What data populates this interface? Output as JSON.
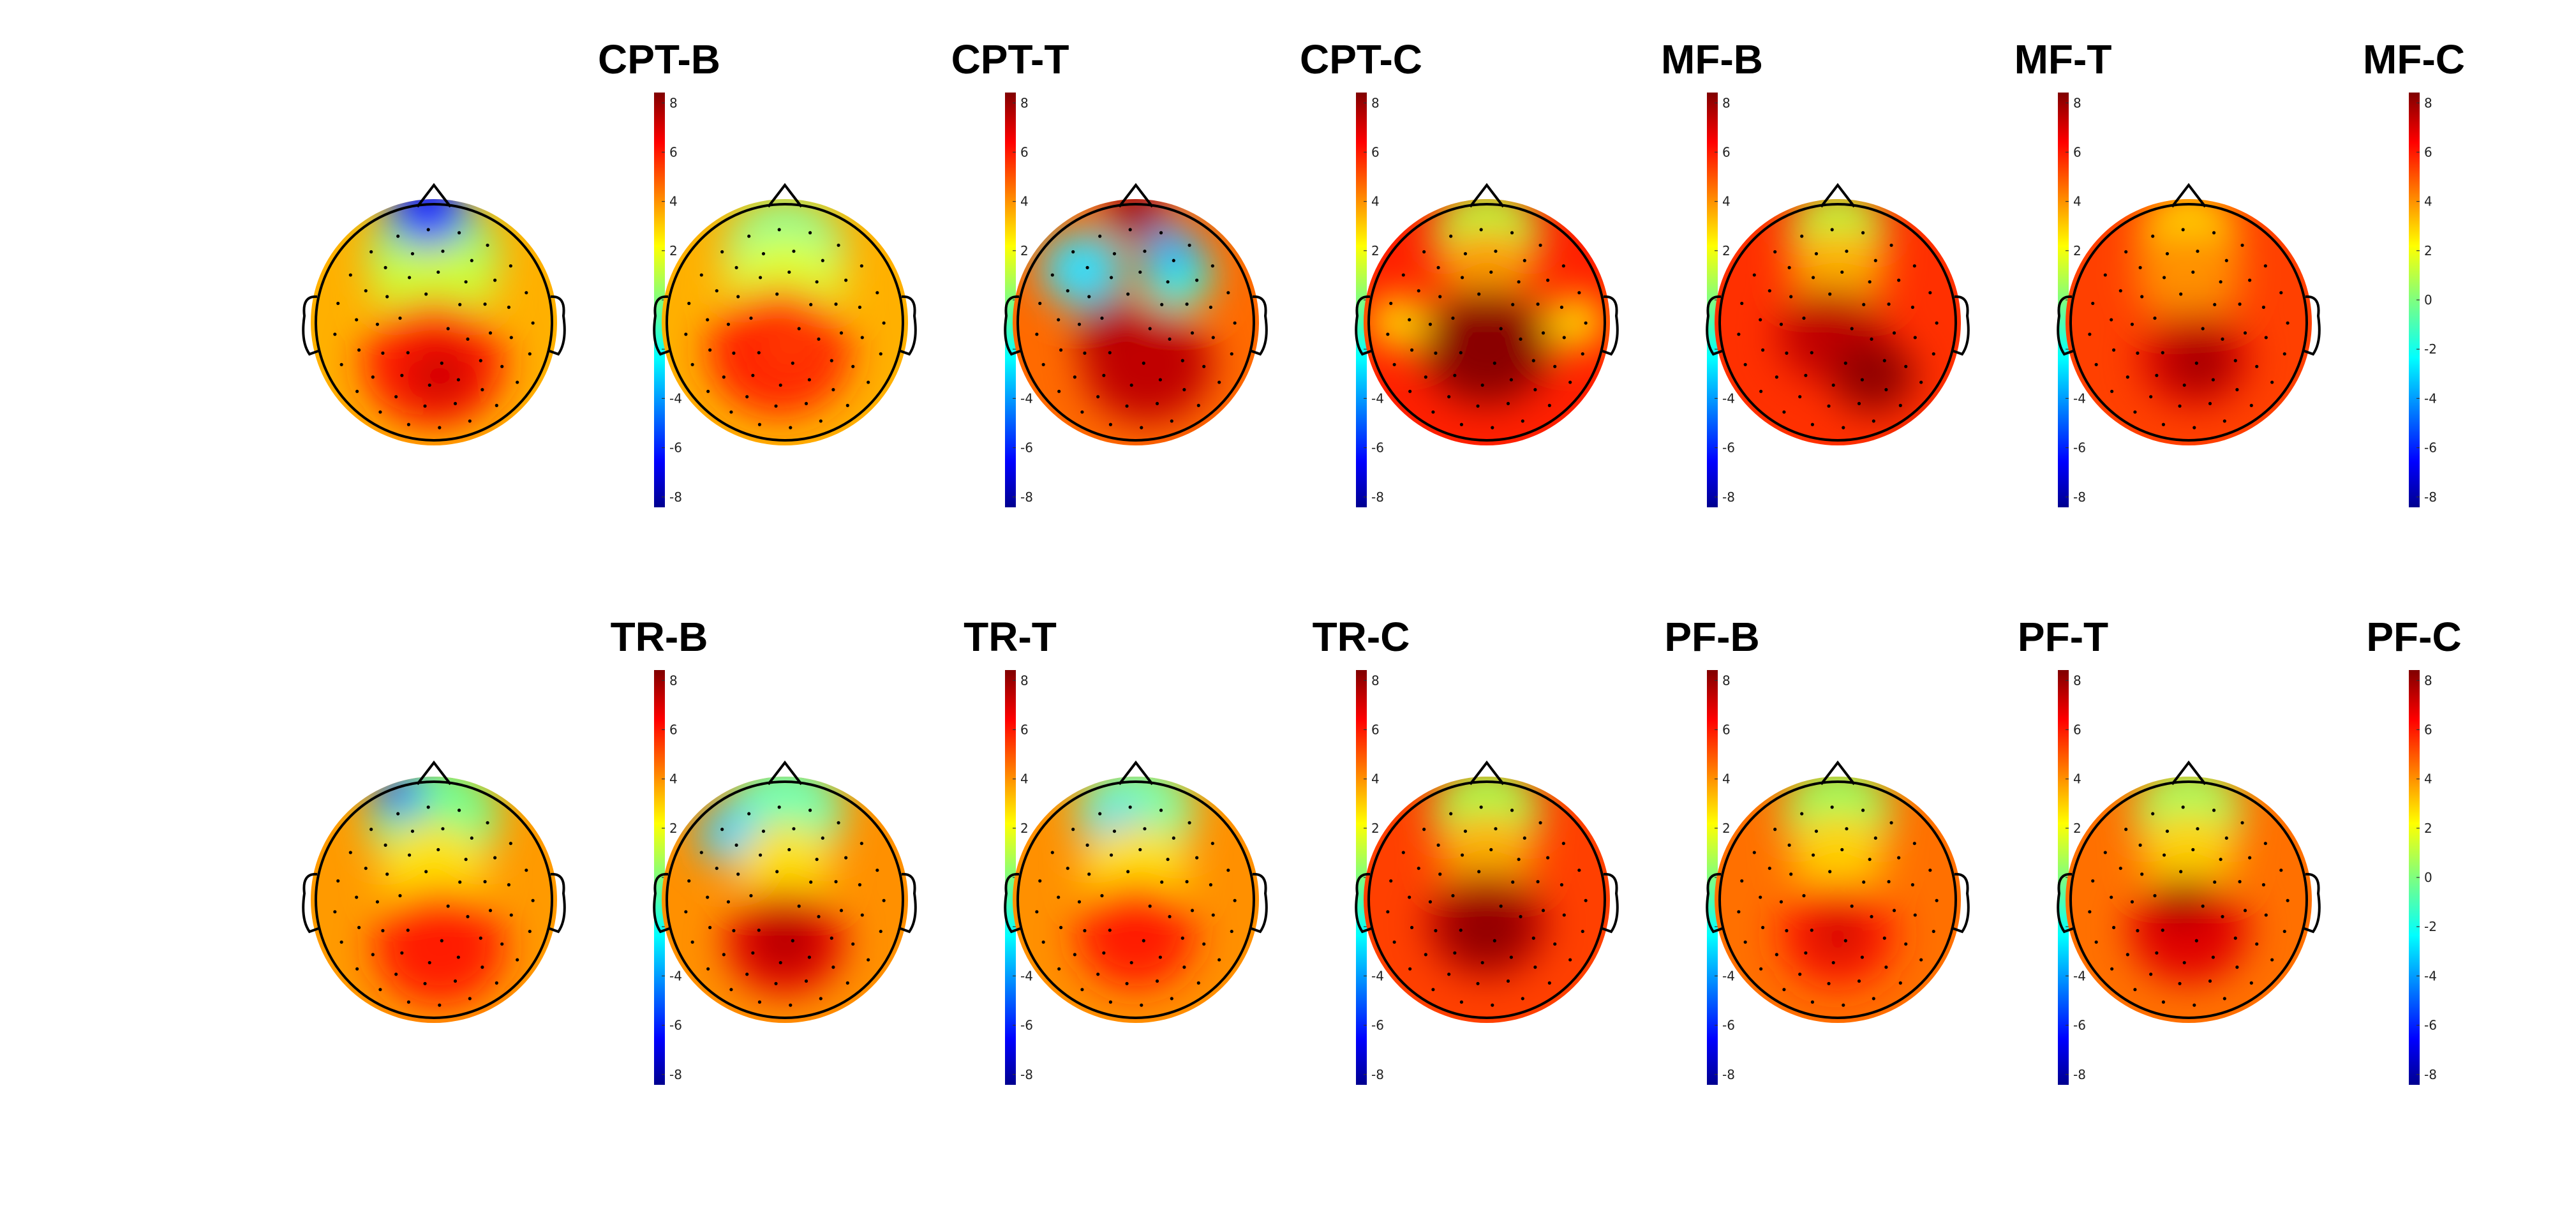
{
  "chart_data": {
    "type": "heatmap",
    "subtype": "eeg-scalp-topography",
    "colormap": "jet",
    "color_range": [
      -8,
      8
    ],
    "colorbar_ticks": [
      8,
      6,
      4,
      2,
      0,
      -2,
      -4,
      -6,
      -8
    ],
    "grid": false,
    "rows": 2,
    "columns": 6,
    "panels": [
      {
        "title": "CPT-B"
      },
      {
        "title": "CPT-T"
      },
      {
        "title": "CPT-C"
      },
      {
        "title": "MF-B"
      },
      {
        "title": "MF-T"
      },
      {
        "title": "MF-C"
      },
      {
        "title": "TR-B"
      },
      {
        "title": "TR-T"
      },
      {
        "title": "TR-C"
      },
      {
        "title": "PF-B"
      },
      {
        "title": "PF-T"
      },
      {
        "title": "PF-C"
      }
    ]
  }
}
